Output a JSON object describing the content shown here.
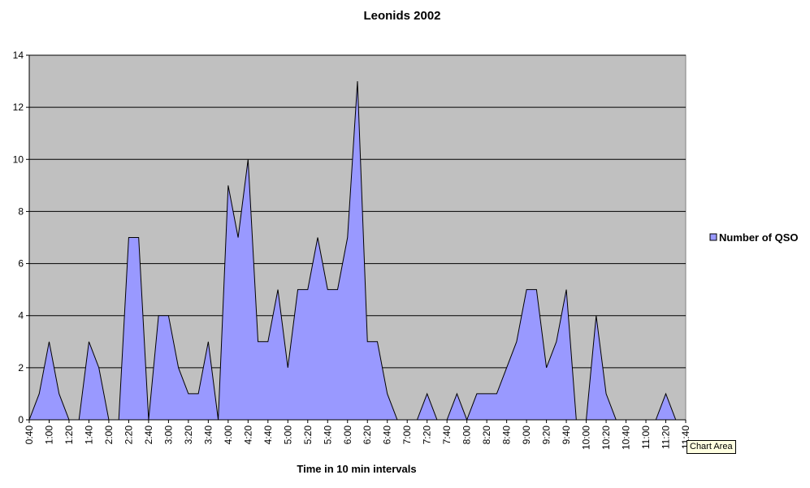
{
  "chart_data": {
    "type": "area",
    "title": "Leonids 2002",
    "xlabel": "Time in 10 min intervals",
    "ylabel": "",
    "ylim": [
      0,
      14
    ],
    "yticks": [
      0,
      2,
      4,
      6,
      8,
      10,
      12,
      14
    ],
    "grid": true,
    "legend_position": "right",
    "colors": {
      "plot_bg": "#C0C0C0",
      "fill": "#9999FF",
      "line": "#000000",
      "gridline": "#000000"
    },
    "x": [
      "0:40",
      "0:50",
      "1:00",
      "1:10",
      "1:20",
      "1:30",
      "1:40",
      "1:50",
      "2:00",
      "2:10",
      "2:20",
      "2:30",
      "2:40",
      "2:50",
      "3:00",
      "3:10",
      "3:20",
      "3:30",
      "3:40",
      "3:50",
      "4:00",
      "4:10",
      "4:20",
      "4:30",
      "4:40",
      "4:50",
      "5:00",
      "5:10",
      "5:20",
      "5:30",
      "5:40",
      "5:50",
      "6:00",
      "6:10",
      "6:20",
      "6:30",
      "6:40",
      "6:50",
      "7:00",
      "7:10",
      "7:20",
      "7:30",
      "7:40",
      "7:50",
      "8:00",
      "8:10",
      "8:20",
      "8:30",
      "8:40",
      "8:50",
      "9:00",
      "9:10",
      "9:20",
      "9:30",
      "9:40",
      "9:50",
      "10:00",
      "10:10",
      "10:20",
      "10:30",
      "10:40",
      "10:50",
      "11:00",
      "11:10",
      "11:20",
      "11:30",
      "11:40"
    ],
    "x_tick_labels": [
      "0:40",
      "1:00",
      "1:20",
      "1:40",
      "2:00",
      "2:20",
      "2:40",
      "3:00",
      "3:20",
      "3:40",
      "4:00",
      "4:20",
      "4:40",
      "5:00",
      "5:20",
      "5:40",
      "6:00",
      "6:20",
      "6:40",
      "7:00",
      "7:20",
      "7:40",
      "8:00",
      "8:20",
      "8:40",
      "9:00",
      "9:20",
      "9:40",
      "10:00",
      "10:20",
      "10:40",
      "11:00",
      "11:20",
      "11:40"
    ],
    "series": [
      {
        "name": "Number of QSO",
        "values": [
          0,
          1,
          3,
          1,
          0,
          0,
          3,
          2,
          0,
          0,
          7,
          7,
          0,
          4,
          4,
          2,
          1,
          1,
          3,
          0,
          9,
          7,
          10,
          3,
          3,
          5,
          2,
          5,
          5,
          7,
          5,
          5,
          7,
          13,
          3,
          3,
          1,
          0,
          0,
          0,
          1,
          0,
          0,
          1,
          0,
          1,
          1,
          1,
          2,
          3,
          5,
          5,
          2,
          3,
          5,
          0,
          0,
          4,
          1,
          0,
          0,
          0,
          0,
          0,
          1,
          0,
          0
        ]
      }
    ]
  },
  "tooltip_text": "Chart Area"
}
